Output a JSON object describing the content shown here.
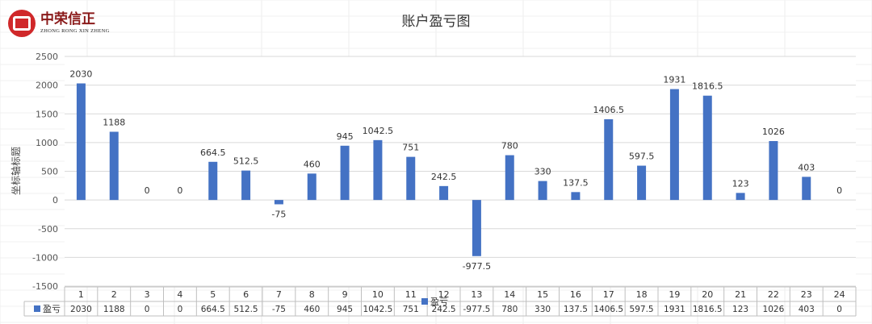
{
  "logo": {
    "cn": "中荣信正",
    "en": "ZHONG RONG XIN ZHENG"
  },
  "chart_data": {
    "type": "bar",
    "title": "账户盈亏图",
    "xlabel": "",
    "ylabel": "坐标轴标题",
    "ylim": [
      -1500,
      2500
    ],
    "yticks": [
      2500,
      2000,
      1500,
      1000,
      500,
      0,
      -500,
      -1000,
      -1500
    ],
    "grid": true,
    "categories": [
      "1",
      "2",
      "3",
      "4",
      "5",
      "6",
      "7",
      "8",
      "9",
      "10",
      "11",
      "12",
      "13",
      "14",
      "15",
      "16",
      "17",
      "18",
      "19",
      "20",
      "21",
      "22",
      "23",
      "24"
    ],
    "series": [
      {
        "name": "盈亏",
        "color": "#4472c4",
        "values": [
          2030,
          1188,
          0,
          0,
          664.5,
          512.5,
          -75,
          460,
          945,
          1042.5,
          751,
          242.5,
          -977.5,
          780,
          330,
          137.5,
          1406.5,
          597.5,
          1931,
          1816.5,
          123,
          1026,
          403,
          0
        ]
      }
    ],
    "data_labels": [
      "2030",
      "1188",
      "0",
      "0",
      "664.5",
      "512.5",
      "-75",
      "460",
      "945",
      "1042.5",
      "751",
      "242.5",
      "-977.5",
      "780",
      "330",
      "137.5",
      "1406.5",
      "597.5",
      "1931",
      "1816.5",
      "123",
      "1026",
      "403",
      "0"
    ],
    "data_table": true,
    "legend": "center-bottom"
  }
}
